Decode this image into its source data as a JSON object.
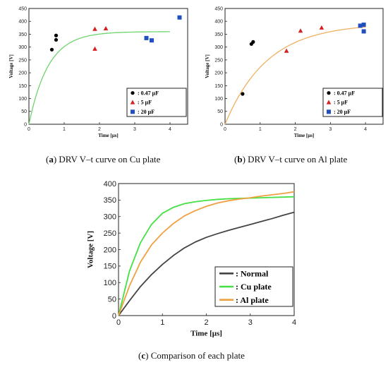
{
  "captions": {
    "a": {
      "letter": "a",
      "text": ") DRV V–t curve on Cu plate"
    },
    "b": {
      "letter": "b",
      "text": ") DRV V–t curve on Al plate"
    },
    "c": {
      "letter": "c",
      "text": ") Comparison of each plate"
    }
  },
  "chart_data": [
    {
      "id": "a",
      "type": "scatter",
      "xlabel": "Time [μs]",
      "ylabel": "Voltage [V]",
      "xlim": [
        0,
        4.5
      ],
      "ylim": [
        0,
        450
      ],
      "xticks": [
        "0",
        "1",
        "2",
        "3",
        "4"
      ],
      "yticks": [
        "0",
        "50",
        "100",
        "150",
        "200",
        "250",
        "300",
        "350",
        "400",
        "450"
      ],
      "legend_position": "bottom-right",
      "series": [
        {
          "name": ": 0.47 μF",
          "marker": "circle",
          "color": "#000000",
          "points": [
            [
              0.65,
              290
            ],
            [
              0.77,
              345
            ],
            [
              0.77,
              328
            ]
          ]
        },
        {
          "name": ": 5 μF",
          "marker": "triangle",
          "color": "#d42020",
          "points": [
            [
              1.87,
              370
            ],
            [
              1.87,
              293
            ],
            [
              2.18,
              372
            ]
          ]
        },
        {
          "name": ": 20 μF",
          "marker": "square",
          "color": "#2050c0",
          "points": [
            [
              3.33,
              335
            ],
            [
              3.48,
              326
            ],
            [
              4.27,
              415
            ]
          ]
        }
      ],
      "curve": {
        "color": "#6ed46e",
        "vmax": 360,
        "tau": 0.55
      }
    },
    {
      "id": "b",
      "type": "scatter",
      "xlabel": "Time [μs]",
      "ylabel": "Voltage [V]",
      "xlim": [
        0,
        4.5
      ],
      "ylim": [
        0,
        450
      ],
      "xticks": [
        "0",
        "1",
        "2",
        "3",
        "4"
      ],
      "yticks": [
        "0",
        "50",
        "100",
        "150",
        "200",
        "250",
        "300",
        "350",
        "400",
        "450"
      ],
      "legend_position": "bottom-right",
      "series": [
        {
          "name": ": 0.47 μF",
          "marker": "circle",
          "color": "#000000",
          "points": [
            [
              0.5,
              118
            ],
            [
              0.75,
              312
            ],
            [
              0.8,
              320
            ]
          ]
        },
        {
          "name": ": 5 μF",
          "marker": "triangle",
          "color": "#d42020",
          "points": [
            [
              1.75,
              285
            ],
            [
              2.15,
              363
            ],
            [
              2.75,
              375
            ]
          ]
        },
        {
          "name": ": 20 μF",
          "marker": "square",
          "color": "#2050c0",
          "points": [
            [
              3.85,
              383
            ],
            [
              3.95,
              387
            ],
            [
              3.95,
              361
            ]
          ]
        }
      ],
      "curve": {
        "color": "#f0b060",
        "vmax": 392,
        "tau": 1.2
      }
    },
    {
      "id": "c",
      "type": "line",
      "xlabel": "Time [μs]",
      "ylabel": "Voltage [V]",
      "xlim": [
        0,
        4
      ],
      "ylim": [
        0,
        400
      ],
      "xticks": [
        "0",
        "1",
        "2",
        "3",
        "4"
      ],
      "yticks": [
        "0",
        "50",
        "100",
        "150",
        "200",
        "250",
        "300",
        "350",
        "400"
      ],
      "legend_position": "bottom-right",
      "series": [
        {
          "name": ": Normal",
          "color": "#444444",
          "x": [
            0,
            0.25,
            0.5,
            0.75,
            1,
            1.25,
            1.5,
            1.75,
            2,
            2.25,
            2.5,
            2.75,
            3,
            3.25,
            3.5,
            3.75,
            4
          ],
          "y": [
            0,
            45,
            88,
            124,
            155,
            182,
            205,
            223,
            237,
            248,
            258,
            267,
            276,
            285,
            294,
            304,
            313
          ]
        },
        {
          "name": ": Cu plate",
          "color": "#44e044",
          "x": [
            0,
            0.25,
            0.5,
            0.75,
            1,
            1.25,
            1.5,
            1.75,
            2,
            2.25,
            2.5,
            2.75,
            3,
            3.25,
            3.5,
            3.75,
            4
          ],
          "y": [
            0,
            135,
            221,
            276,
            310,
            328,
            339,
            345,
            349,
            352,
            354,
            355,
            356,
            357,
            358,
            359,
            360
          ]
        },
        {
          "name": ": Al plate",
          "color": "#f0a040",
          "x": [
            0,
            0.25,
            0.5,
            0.75,
            1,
            1.25,
            1.5,
            1.75,
            2,
            2.25,
            2.5,
            2.75,
            3,
            3.25,
            3.5,
            3.75,
            4
          ],
          "y": [
            0,
            90,
            162,
            214,
            250,
            279,
            302,
            318,
            331,
            341,
            348,
            353,
            357,
            362,
            366,
            370,
            375
          ]
        }
      ]
    }
  ]
}
